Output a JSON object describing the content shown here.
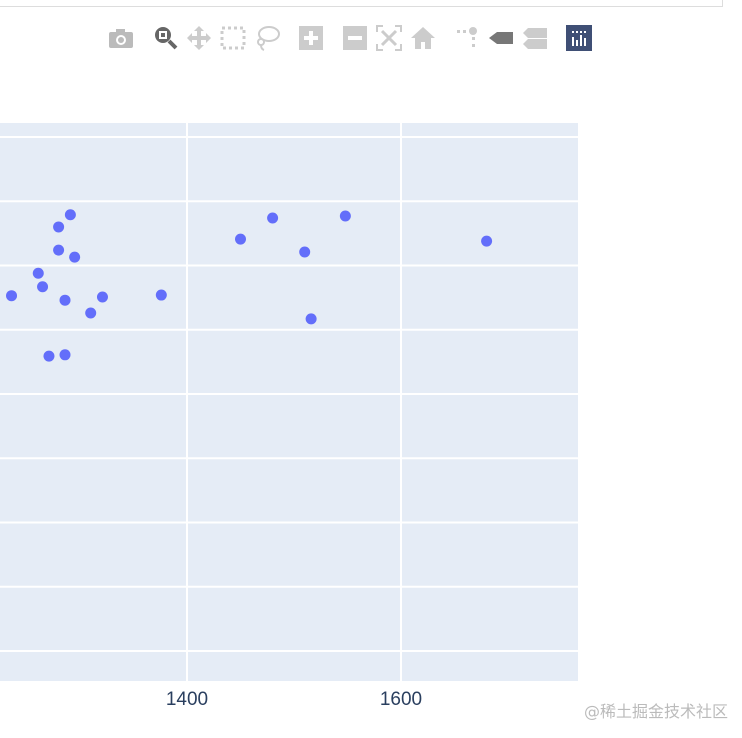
{
  "modebar": {
    "buttons": [
      "camera-icon",
      "zoom-icon",
      "pan-icon",
      "box-select-icon",
      "lasso-select-icon",
      "zoom-in-icon",
      "zoom-out-icon",
      "autoscale-icon",
      "reset-axes-icon",
      "spike-lines-icon",
      "hover-closest-icon",
      "hover-compare-icon",
      "plotly-logo-icon"
    ],
    "active": "zoom-icon"
  },
  "watermark": "@稀土掘金技术社区",
  "chart_data": {
    "type": "scatter",
    "title": "",
    "xlabel": "",
    "ylabel": "",
    "xlim": [
      1225,
      1765
    ],
    "ylim": [
      -0.45,
      8.2
    ],
    "x_ticks": [
      1400,
      1600
    ],
    "x_tick_labels": [
      "1400",
      "1600"
    ],
    "y_gridlines": [
      0,
      1,
      2,
      3,
      4,
      5,
      6,
      7,
      8
    ],
    "grid": true,
    "marker_color": "#636efa",
    "plot_bg": "#e5ecf6",
    "points": [
      {
        "x": 1236,
        "y": 5.53
      },
      {
        "x": 1261,
        "y": 5.88
      },
      {
        "x": 1265,
        "y": 5.67
      },
      {
        "x": 1271,
        "y": 4.59
      },
      {
        "x": 1280,
        "y": 6.6
      },
      {
        "x": 1280,
        "y": 6.24
      },
      {
        "x": 1286,
        "y": 5.46
      },
      {
        "x": 1286,
        "y": 4.61
      },
      {
        "x": 1291,
        "y": 6.79
      },
      {
        "x": 1295,
        "y": 6.13
      },
      {
        "x": 1310,
        "y": 5.26
      },
      {
        "x": 1321,
        "y": 5.51
      },
      {
        "x": 1376,
        "y": 5.54
      },
      {
        "x": 1450,
        "y": 6.41
      },
      {
        "x": 1480,
        "y": 6.74
      },
      {
        "x": 1510,
        "y": 6.21
      },
      {
        "x": 1516,
        "y": 5.17
      },
      {
        "x": 1548,
        "y": 6.77
      },
      {
        "x": 1680,
        "y": 6.38
      }
    ]
  }
}
